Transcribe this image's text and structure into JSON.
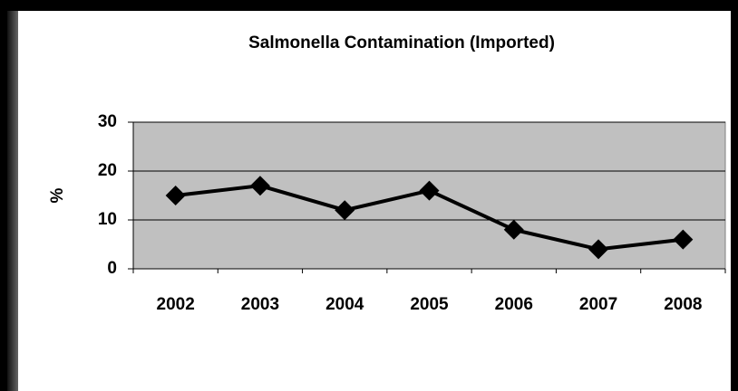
{
  "chart_data": {
    "type": "line",
    "title": "Salmonella Contamination (Imported)",
    "y_label": "%",
    "categories": [
      "2002",
      "2003",
      "2004",
      "2005",
      "2006",
      "2007",
      "2008"
    ],
    "values": [
      15,
      17,
      12,
      16,
      8,
      4,
      6
    ],
    "color": "#000000",
    "plot_color": "#c0c0c0",
    "ylim": [
      0,
      30
    ],
    "yticks": [
      0,
      10,
      20,
      30
    ],
    "grid": true
  }
}
